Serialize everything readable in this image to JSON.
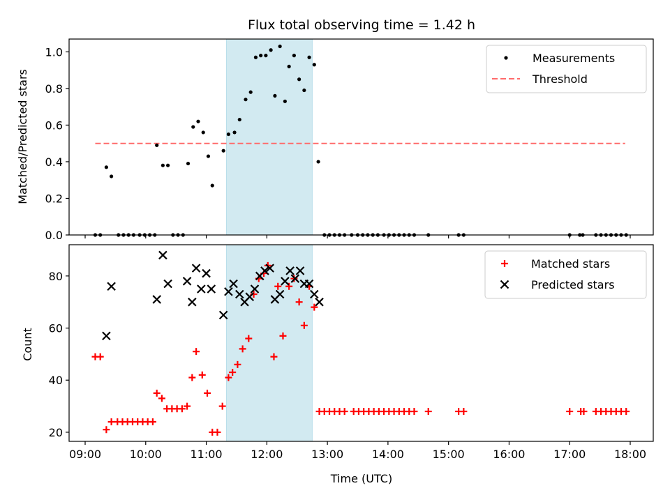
{
  "chart_data": [
    {
      "type": "scatter",
      "title": "Flux total observing time = 1.42 h",
      "xlabel": "",
      "ylabel": "Matched/Predicted stars",
      "xlim": [
        "09:00",
        "18:00"
      ],
      "ylim": [
        0,
        1.07
      ],
      "yticks": [
        "0.0",
        "0.2",
        "0.4",
        "0.6",
        "0.8",
        "1.0"
      ],
      "legend": {
        "position": "top-right",
        "entries": [
          "Measurements",
          "Threshold"
        ]
      },
      "highlight_span": {
        "start": "11:20",
        "end": "12:45",
        "color": "#add8e6"
      },
      "threshold": {
        "name": "Threshold",
        "y": 0.5,
        "x_range": [
          "09:10",
          "17:55"
        ],
        "color": "#ff6b6b"
      },
      "series": [
        {
          "name": "Measurements",
          "color": "#000000",
          "points": [
            [
              "09:10",
              0
            ],
            [
              "09:15",
              0
            ],
            [
              "09:21",
              0.37
            ],
            [
              "09:26",
              0.32
            ],
            [
              "09:33",
              0
            ],
            [
              "09:38",
              0
            ],
            [
              "09:43",
              0
            ],
            [
              "09:48",
              0
            ],
            [
              "09:54",
              0
            ],
            [
              "09:59",
              0
            ],
            [
              "10:04",
              0
            ],
            [
              "10:09",
              0
            ],
            [
              "10:11",
              0.49
            ],
            [
              "10:17",
              0.38
            ],
            [
              "10:22",
              0.38
            ],
            [
              "10:27",
              0
            ],
            [
              "10:32",
              0
            ],
            [
              "10:37",
              0
            ],
            [
              "10:42",
              0.39
            ],
            [
              "10:47",
              0.59
            ],
            [
              "10:52",
              0.62
            ],
            [
              "10:57",
              0.56
            ],
            [
              "11:02",
              0.43
            ],
            [
              "11:06",
              0.27
            ],
            [
              "11:17",
              0.46
            ],
            [
              "11:22",
              0.55
            ],
            [
              "11:28",
              0.56
            ],
            [
              "11:33",
              0.63
            ],
            [
              "11:39",
              0.74
            ],
            [
              "11:44",
              0.78
            ],
            [
              "11:49",
              0.97
            ],
            [
              "11:54",
              0.98
            ],
            [
              "11:59",
              0.98
            ],
            [
              "12:04",
              1.01
            ],
            [
              "12:08",
              0.76
            ],
            [
              "12:13",
              1.03
            ],
            [
              "12:18",
              0.73
            ],
            [
              "12:22",
              0.92
            ],
            [
              "12:27",
              0.98
            ],
            [
              "12:32",
              0.85
            ],
            [
              "12:37",
              0.79
            ],
            [
              "12:42",
              0.97
            ],
            [
              "12:47",
              0.93
            ],
            [
              "12:51",
              0.4
            ],
            [
              "12:57",
              0
            ],
            [
              "13:02",
              0
            ],
            [
              "13:07",
              0
            ],
            [
              "13:12",
              0
            ],
            [
              "13:17",
              0
            ],
            [
              "13:24",
              0
            ],
            [
              "13:30",
              0
            ],
            [
              "13:35",
              0
            ],
            [
              "13:40",
              0
            ],
            [
              "13:45",
              0
            ],
            [
              "13:50",
              0
            ],
            [
              "13:56",
              0
            ],
            [
              "14:01",
              0
            ],
            [
              "14:06",
              0
            ],
            [
              "14:11",
              0
            ],
            [
              "14:16",
              0
            ],
            [
              "14:21",
              0
            ],
            [
              "14:26",
              0
            ],
            [
              "14:40",
              0
            ],
            [
              "15:10",
              0
            ],
            [
              "15:15",
              0
            ],
            [
              "17:00",
              0
            ],
            [
              "17:10",
              0
            ],
            [
              "17:13",
              0
            ],
            [
              "17:26",
              0
            ],
            [
              "17:31",
              0
            ],
            [
              "17:36",
              0
            ],
            [
              "17:41",
              0
            ],
            [
              "17:46",
              0
            ],
            [
              "17:51",
              0
            ],
            [
              "17:56",
              0
            ]
          ]
        }
      ]
    },
    {
      "type": "scatter",
      "title": "",
      "xlabel": "Time (UTC)",
      "ylabel": "Count",
      "xlim": [
        "09:00",
        "18:00"
      ],
      "ylim": [
        16.5,
        92
      ],
      "xticks": [
        "09:00",
        "10:00",
        "11:00",
        "12:00",
        "13:00",
        "14:00",
        "15:00",
        "16:00",
        "17:00",
        "18:00"
      ],
      "yticks": [
        "20",
        "40",
        "60",
        "80"
      ],
      "legend": {
        "position": "top-right",
        "entries": [
          "Matched stars",
          "Predicted stars"
        ]
      },
      "highlight_span": {
        "start": "11:20",
        "end": "12:45",
        "color": "#add8e6"
      },
      "series": [
        {
          "name": "Matched stars",
          "marker": "plus",
          "color": "#ff0000",
          "points": [
            [
              "09:10",
              49
            ],
            [
              "09:15",
              49
            ],
            [
              "09:21",
              21
            ],
            [
              "09:26",
              24
            ],
            [
              "09:32",
              24
            ],
            [
              "09:37",
              24
            ],
            [
              "09:42",
              24
            ],
            [
              "09:47",
              24
            ],
            [
              "09:52",
              24
            ],
            [
              "09:57",
              24
            ],
            [
              "10:02",
              24
            ],
            [
              "10:07",
              24
            ],
            [
              "10:11",
              35
            ],
            [
              "10:16",
              33
            ],
            [
              "10:21",
              29
            ],
            [
              "10:26",
              29
            ],
            [
              "10:31",
              29
            ],
            [
              "10:36",
              29
            ],
            [
              "10:41",
              30
            ],
            [
              "10:46",
              41
            ],
            [
              "10:50",
              51
            ],
            [
              "10:56",
              42
            ],
            [
              "11:01",
              35
            ],
            [
              "11:06",
              20
            ],
            [
              "11:11",
              20
            ],
            [
              "11:16",
              30
            ],
            [
              "11:22",
              41
            ],
            [
              "11:26",
              43
            ],
            [
              "11:31",
              46
            ],
            [
              "11:36",
              52
            ],
            [
              "11:42",
              56
            ],
            [
              "11:47",
              73
            ],
            [
              "11:52",
              79
            ],
            [
              "11:57",
              81
            ],
            [
              "12:01",
              84
            ],
            [
              "12:07",
              49
            ],
            [
              "12:11",
              76
            ],
            [
              "12:16",
              57
            ],
            [
              "12:22",
              76
            ],
            [
              "12:27",
              79
            ],
            [
              "12:32",
              70
            ],
            [
              "12:37",
              61
            ],
            [
              "12:42",
              76
            ],
            [
              "12:47",
              68
            ],
            [
              "12:52",
              28
            ],
            [
              "12:57",
              28
            ],
            [
              "13:02",
              28
            ],
            [
              "13:07",
              28
            ],
            [
              "13:12",
              28
            ],
            [
              "13:17",
              28
            ],
            [
              "13:26",
              28
            ],
            [
              "13:31",
              28
            ],
            [
              "13:36",
              28
            ],
            [
              "13:41",
              28
            ],
            [
              "13:46",
              28
            ],
            [
              "13:51",
              28
            ],
            [
              "13:56",
              28
            ],
            [
              "14:01",
              28
            ],
            [
              "14:06",
              28
            ],
            [
              "14:11",
              28
            ],
            [
              "14:16",
              28
            ],
            [
              "14:21",
              28
            ],
            [
              "14:26",
              28
            ],
            [
              "14:40",
              28
            ],
            [
              "15:10",
              28
            ],
            [
              "15:15",
              28
            ],
            [
              "17:00",
              28
            ],
            [
              "17:11",
              28
            ],
            [
              "17:14",
              28
            ],
            [
              "17:26",
              28
            ],
            [
              "17:31",
              28
            ],
            [
              "17:36",
              28
            ],
            [
              "17:41",
              28
            ],
            [
              "17:46",
              28
            ],
            [
              "17:51",
              28
            ],
            [
              "17:56",
              28
            ]
          ]
        },
        {
          "name": "Predicted stars",
          "marker": "x",
          "color": "#000000",
          "points": [
            [
              "09:21",
              57
            ],
            [
              "09:26",
              76
            ],
            [
              "10:11",
              71
            ],
            [
              "10:17",
              88
            ],
            [
              "10:22",
              77
            ],
            [
              "10:41",
              78
            ],
            [
              "10:46",
              70
            ],
            [
              "10:50",
              83
            ],
            [
              "10:55",
              75
            ],
            [
              "11:00",
              81
            ],
            [
              "11:05",
              75
            ],
            [
              "11:17",
              65
            ],
            [
              "11:22",
              74
            ],
            [
              "11:27",
              77
            ],
            [
              "11:33",
              73
            ],
            [
              "11:38",
              70
            ],
            [
              "11:43",
              72
            ],
            [
              "11:48",
              75
            ],
            [
              "11:53",
              80
            ],
            [
              "11:58",
              82
            ],
            [
              "12:03",
              83
            ],
            [
              "12:08",
              71
            ],
            [
              "12:13",
              73
            ],
            [
              "12:18",
              78
            ],
            [
              "12:23",
              82
            ],
            [
              "12:28",
              79
            ],
            [
              "12:33",
              82
            ],
            [
              "12:37",
              77
            ],
            [
              "12:42",
              77
            ],
            [
              "12:47",
              73
            ],
            [
              "12:52",
              70
            ]
          ]
        }
      ]
    }
  ]
}
